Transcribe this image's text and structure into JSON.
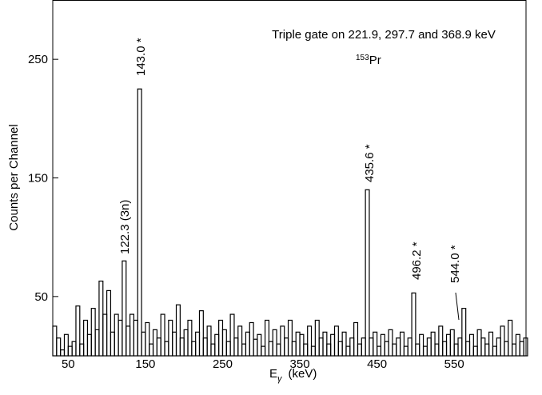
{
  "chart_data": {
    "type": "histogram",
    "title": "Triple gate on 221.9, 297.7 and 368.9 keV",
    "nucleus": {
      "mass": "153",
      "symbol": "Pr"
    },
    "xlabel": {
      "main": "E",
      "sub": "γ",
      "unit": "(keV)"
    },
    "ylabel": "Counts per Channel",
    "color": "#000000",
    "xlim": [
      30,
      643
    ],
    "ylim": [
      0,
      300
    ],
    "xticks": [
      50,
      150,
      250,
      350,
      450,
      550
    ],
    "yticks": [
      50,
      150,
      250
    ],
    "annotations": [
      "143.0 *",
      "122.3 (3n)",
      "435.6 *",
      "496.2 *",
      "544.0 *"
    ],
    "bins": [
      30,
      35,
      40,
      45,
      50,
      55,
      60,
      65,
      70,
      75,
      80,
      85,
      90,
      95,
      100,
      105,
      110,
      115,
      120,
      125,
      130,
      135,
      140,
      145,
      150,
      155,
      160,
      165,
      170,
      175,
      180,
      185,
      190,
      195,
      200,
      205,
      210,
      215,
      220,
      225,
      230,
      235,
      240,
      245,
      250,
      255,
      260,
      265,
      270,
      275,
      280,
      285,
      290,
      295,
      300,
      305,
      310,
      315,
      320,
      325,
      330,
      335,
      340,
      345,
      350,
      355,
      360,
      365,
      370,
      375,
      380,
      385,
      390,
      395,
      400,
      405,
      410,
      415,
      420,
      425,
      430,
      435,
      440,
      445,
      450,
      455,
      460,
      465,
      470,
      475,
      480,
      485,
      490,
      495,
      500,
      505,
      510,
      515,
      520,
      525,
      530,
      535,
      540,
      545,
      550,
      555,
      560,
      565,
      570,
      575,
      580,
      585,
      590,
      595,
      600,
      605,
      610,
      615,
      620,
      625,
      630,
      635,
      640,
      645
    ],
    "values": [
      25,
      15,
      5,
      18,
      8,
      12,
      42,
      10,
      30,
      18,
      40,
      22,
      63,
      35,
      55,
      20,
      35,
      30,
      80,
      25,
      35,
      30,
      225,
      20,
      28,
      10,
      22,
      15,
      35,
      12,
      30,
      20,
      43,
      15,
      22,
      30,
      12,
      20,
      38,
      15,
      25,
      10,
      18,
      30,
      22,
      12,
      35,
      15,
      25,
      10,
      20,
      28,
      14,
      18,
      8,
      30,
      12,
      22,
      10,
      25,
      15,
      30,
      12,
      20,
      18,
      10,
      25,
      8,
      30,
      15,
      20,
      10,
      18,
      25,
      12,
      20,
      8,
      15,
      28,
      10,
      15,
      140,
      15,
      20,
      8,
      18,
      12,
      22,
      10,
      15,
      20,
      8,
      15,
      53,
      10,
      18,
      8,
      15,
      20,
      10,
      25,
      12,
      18,
      22,
      10,
      15,
      40,
      12,
      18,
      8,
      22,
      15,
      10,
      20,
      8,
      15,
      25,
      12,
      30,
      10,
      18,
      12,
      15
    ]
  }
}
